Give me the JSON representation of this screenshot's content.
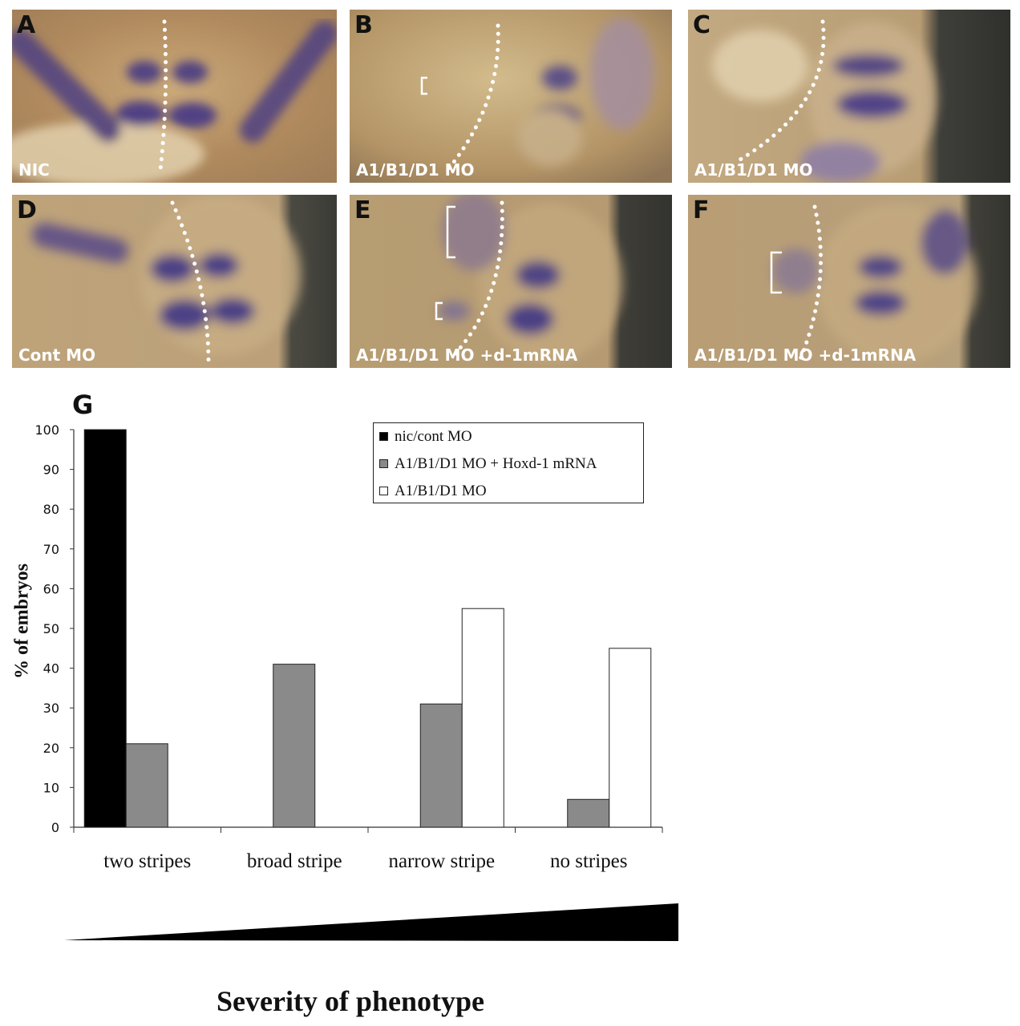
{
  "figure": {
    "panels": [
      {
        "letter": "A",
        "caption": "NIC"
      },
      {
        "letter": "B",
        "caption": "A1/B1/D1 MO"
      },
      {
        "letter": "C",
        "caption": "A1/B1/D1 MO"
      },
      {
        "letter": "D",
        "caption": "Cont MO"
      },
      {
        "letter": "E",
        "caption": "A1/B1/D1 MO +d-1mRNA"
      },
      {
        "letter": "F",
        "caption": "A1/B1/D1 MO +d-1mRNA"
      }
    ],
    "chart_letter": "G"
  },
  "chart_data": {
    "type": "bar",
    "categories": [
      "two stripes",
      "broad stripe",
      "narrow stripe",
      "no stripes"
    ],
    "series": [
      {
        "name": "nic/cont MO",
        "color": "#000000",
        "values": [
          100,
          0,
          0,
          0
        ]
      },
      {
        "name": "A1/B1/D1 MO + Hoxd-1 mRNA",
        "color": "#8a8a8a",
        "values": [
          21,
          41,
          31,
          7
        ]
      },
      {
        "name": "A1/B1/D1 MO",
        "color": "#ffffff",
        "values": [
          0,
          0,
          55,
          45
        ]
      }
    ],
    "ylabel": "% of embryos",
    "xlabel": "Severity of phenotype",
    "ylim": [
      0,
      100
    ],
    "yticks": [
      "0",
      "10",
      "20",
      "30",
      "40",
      "50",
      "60",
      "70",
      "80",
      "90",
      "100"
    ],
    "legend_position": "top-right",
    "grid": false
  }
}
